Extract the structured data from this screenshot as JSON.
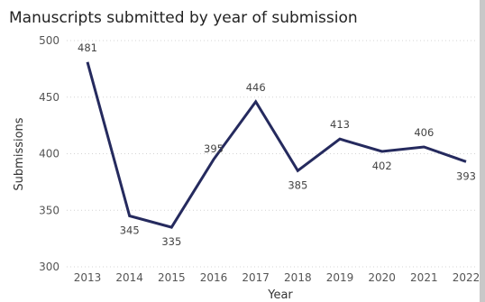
{
  "chart_data": {
    "type": "line",
    "title": "Manuscripts submitted by year of submission",
    "xlabel": "Year",
    "ylabel": "Submissions",
    "categories": [
      "2013",
      "2014",
      "2015",
      "2016",
      "2017",
      "2018",
      "2019",
      "2020",
      "2021",
      "2022"
    ],
    "series": [
      {
        "values": [
          481,
          345,
          335,
          395,
          446,
          385,
          413,
          402,
          406,
          393
        ]
      }
    ],
    "ylim": [
      300,
      500
    ],
    "yticks": [
      300,
      350,
      400,
      450,
      500
    ],
    "grid": true,
    "line_color": "#252a5e"
  }
}
